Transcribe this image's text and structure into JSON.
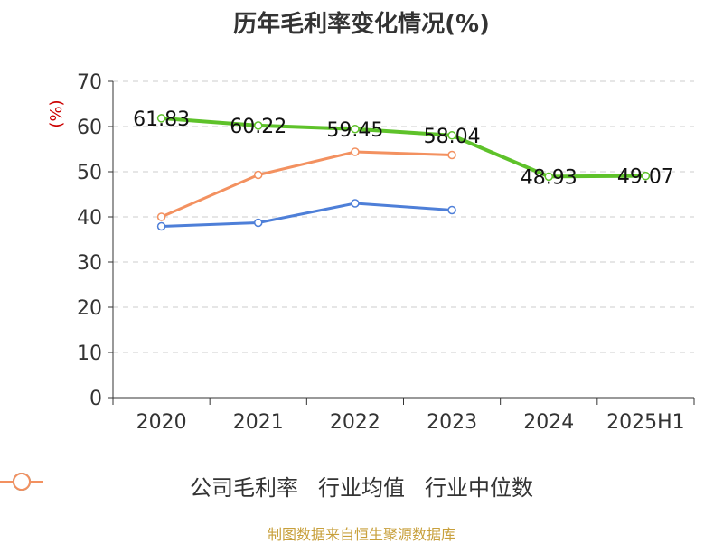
{
  "title": "历年毛利率变化情况(%)",
  "source": "制图数据来自恒生聚源数据库",
  "chart_data": {
    "type": "line",
    "categories": [
      "2020",
      "2021",
      "2022",
      "2023",
      "2024",
      "2025H1"
    ],
    "ylabel": "(%)",
    "ylim": [
      0,
      70
    ],
    "yticks": [
      0,
      10,
      20,
      30,
      40,
      50,
      60,
      70
    ],
    "grid": true,
    "legend_position": "bottom",
    "series": [
      {
        "name": "公司毛利率",
        "color": "#5ec22a",
        "values": [
          61.83,
          60.22,
          59.45,
          58.04,
          48.93,
          49.07
        ],
        "labels": [
          "61.83",
          "60.22",
          "59.45",
          "58.04",
          "48.93",
          "49.07"
        ]
      },
      {
        "name": "行业均值",
        "color": "#4e7fd8",
        "values": [
          37.9,
          38.7,
          43.0,
          41.5,
          null,
          null
        ]
      },
      {
        "name": "行业中位数",
        "color": "#f39160",
        "values": [
          40.0,
          49.3,
          54.4,
          53.7,
          null,
          null
        ]
      }
    ]
  }
}
